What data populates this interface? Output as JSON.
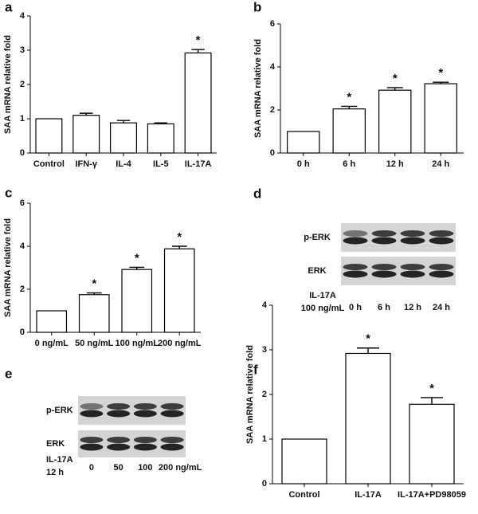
{
  "chart_data": [
    {
      "type": "bar",
      "panel": "a",
      "y_label": "SAA mRNA relative fold",
      "categories": [
        "Control",
        "IFN-γ",
        "IL-4",
        "IL-5",
        "IL-17A"
      ],
      "values": [
        1,
        1.1,
        0.88,
        0.85,
        2.92
      ],
      "errors": [
        null,
        0.06,
        0.07,
        0.03,
        0.1
      ],
      "significance": [
        null,
        null,
        null,
        null,
        "*"
      ],
      "ylim": [
        0,
        4
      ],
      "yticks": [
        0,
        1,
        2,
        3,
        4
      ],
      "color": "#ffffff"
    },
    {
      "type": "bar",
      "panel": "b",
      "y_label": "SAA mRNA relative fold",
      "categories": [
        "0 h",
        "6 h",
        "12 h",
        "24 h"
      ],
      "values": [
        1,
        2.05,
        2.92,
        3.22
      ],
      "errors": [
        null,
        0.12,
        0.12,
        0.07
      ],
      "significance": [
        null,
        "*",
        "*",
        "*"
      ],
      "ylim": [
        0,
        6
      ],
      "yticks": [
        0,
        2,
        4,
        6
      ],
      "color": "#ffffff"
    },
    {
      "type": "bar",
      "panel": "c",
      "y_label": "SAA mRNA relative fold",
      "categories": [
        "0 ng/mL",
        "50 ng/mL",
        "100 ng/mL",
        "200 ng/mL"
      ],
      "values": [
        1,
        1.75,
        2.92,
        3.88
      ],
      "errors": [
        null,
        0.08,
        0.1,
        0.12
      ],
      "significance": [
        null,
        "*",
        "*",
        "*"
      ],
      "ylim": [
        0,
        6
      ],
      "yticks": [
        0,
        2,
        4,
        6
      ],
      "color": "#ffffff"
    },
    {
      "type": "bar",
      "panel": "f",
      "y_label": "SAA mRNA relative fold",
      "categories": [
        "Control",
        "IL-17A",
        "IL-17A+PD98059"
      ],
      "values": [
        1,
        2.92,
        1.78
      ],
      "errors": [
        null,
        0.12,
        0.15
      ],
      "significance": [
        null,
        "*",
        "*"
      ],
      "ylim": [
        0,
        4
      ],
      "yticks": [
        0,
        1,
        2,
        3,
        4
      ],
      "color": "#ffffff"
    }
  ],
  "blots": [
    {
      "panel": "d",
      "rows": [
        "p-ERK",
        "ERK"
      ],
      "treatment": [
        "IL-17A",
        "100 ng/mL"
      ],
      "lanes": [
        "0 h",
        "6 h",
        "12 h",
        "24 h"
      ]
    },
    {
      "panel": "e",
      "rows": [
        "p-ERK",
        "ERK"
      ],
      "treatment": [
        "IL-17A",
        "12 h"
      ],
      "lanes": [
        "0",
        "50",
        "100",
        "200 ng/mL"
      ]
    }
  ]
}
